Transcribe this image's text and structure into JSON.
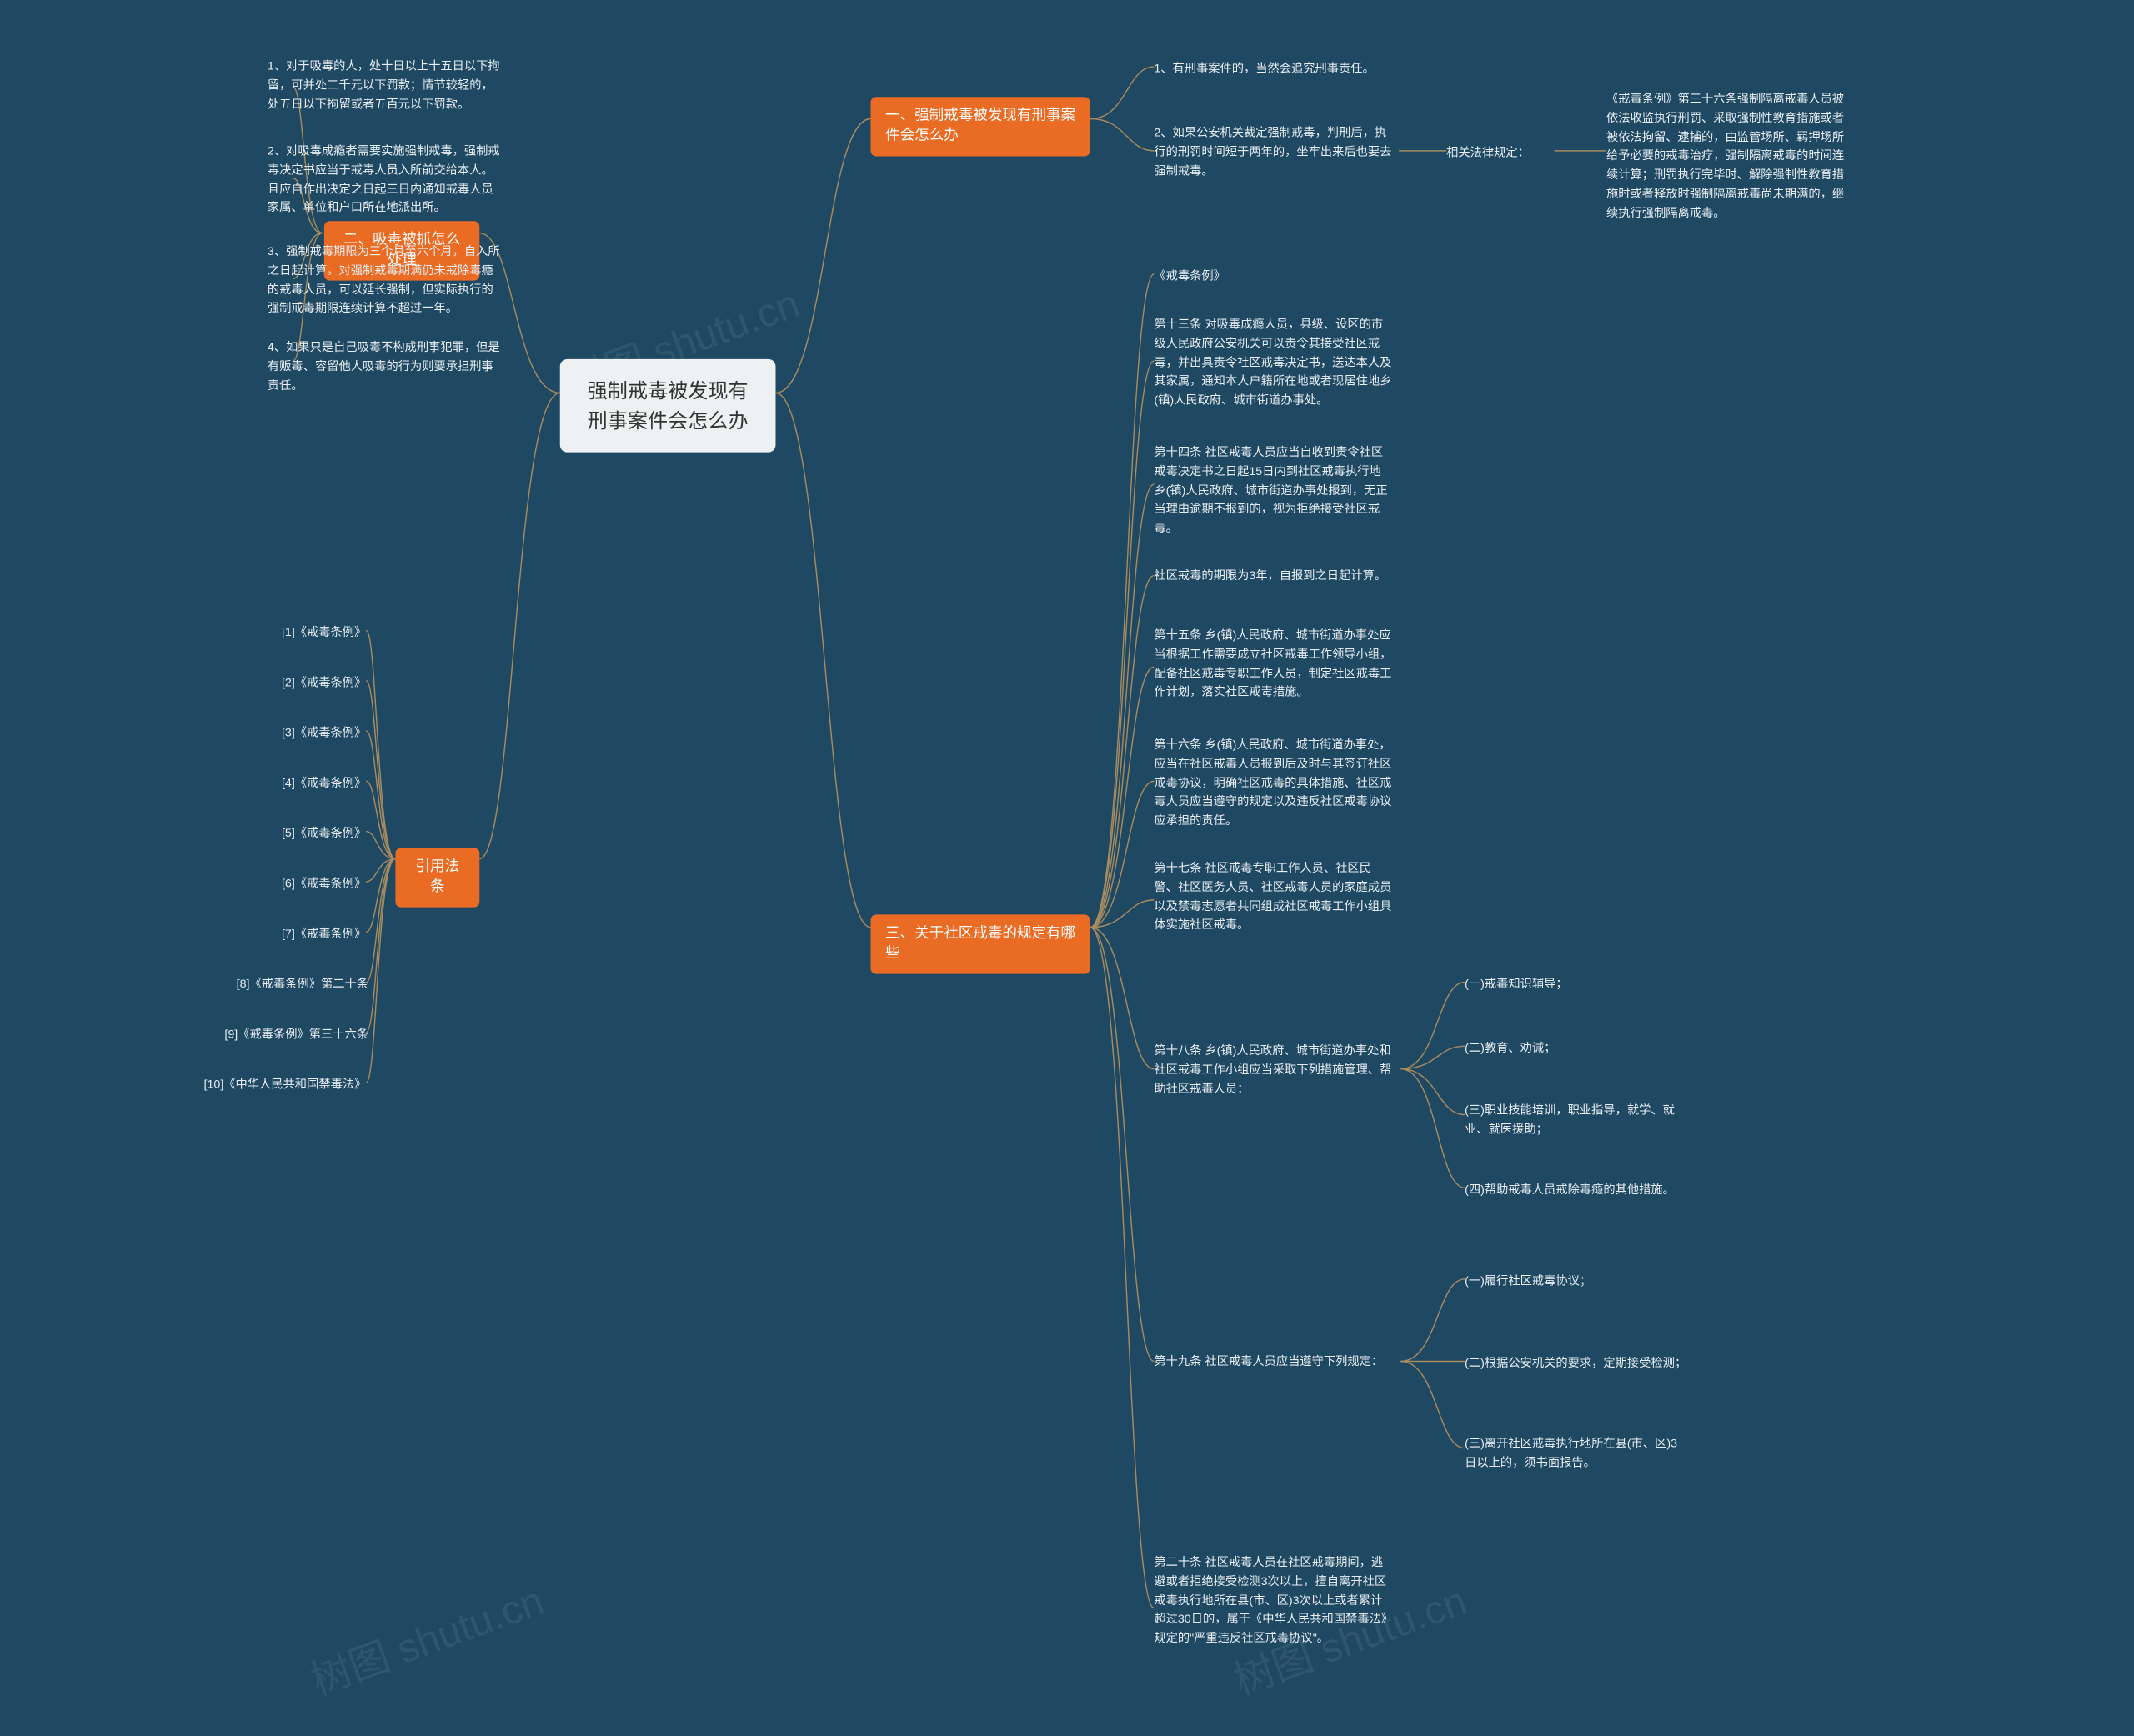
{
  "colors": {
    "background": "#1f4862",
    "root_bg": "#eef1f2",
    "root_text": "#333333",
    "branch_bg": "#e96b24",
    "branch_text": "#ffffff",
    "leaf_text": "#e8eef2",
    "connector": "#a88c5f",
    "watermark": "rgba(255,255,255,0.08)"
  },
  "fonts": {
    "root_fontsize": 22,
    "branch_fontsize": 16,
    "leaf_fontsize": 13
  },
  "watermark_text": "树图 shutu.cn",
  "root": {
    "label": "强制戒毒被发现有刑事案件会怎么办"
  },
  "branch1": {
    "label": "一、强制戒毒被发现有刑事案件会怎么办",
    "leaf1": "1、有刑事案件的，当然会追究刑事责任。",
    "leaf2": "2、如果公安机关裁定强制戒毒，判刑后，执行的刑罚时间短于两年的，坐牢出来后也要去强制戒毒。",
    "leaf2_sub_label": "相关法律规定：",
    "leaf2_sub_text": "《戒毒条例》第三十六条强制隔离戒毒人员被依法收监执行刑罚、采取强制性教育措施或者被依法拘留、逮捕的，由监管场所、羁押场所给予必要的戒毒治疗，强制隔离戒毒的时间连续计算；刑罚执行完毕时、解除强制性教育措施时或者释放时强制隔离戒毒尚未期满的，继续执行强制隔离戒毒。"
  },
  "branch2": {
    "label": "二、吸毒被抓怎么处理",
    "leaf1": "1、对于吸毒的人，处十日以上十五日以下拘留，可并处二千元以下罚款；情节较轻的，处五日以下拘留或者五百元以下罚款。",
    "leaf2": "2、对吸毒成瘾者需要实施强制戒毒，强制戒毒决定书应当于戒毒人员入所前交给本人。且应自作出决定之日起三日内通知戒毒人员家属、单位和户口所在地派出所。",
    "leaf3": "3、强制戒毒期限为三个月至六个月，自入所之日起计算。对强制戒毒期满仍未戒除毒瘾的戒毒人员，可以延长强制，但实际执行的强制戒毒期限连续计算不超过一年。",
    "leaf4": "4、如果只是自己吸毒不构成刑事犯罪，但是有贩毒、容留他人吸毒的行为则要承担刑事责任。"
  },
  "branch3": {
    "label": "三、关于社区戒毒的规定有哪些",
    "items": {
      "a": "《戒毒条例》",
      "b": "第十三条 对吸毒成瘾人员，县级、设区的市级人民政府公安机关可以责令其接受社区戒毒，并出具责令社区戒毒决定书，送达本人及其家属，通知本人户籍所在地或者现居住地乡(镇)人民政府、城市街道办事处。",
      "c": "第十四条 社区戒毒人员应当自收到责令社区戒毒决定书之日起15日内到社区戒毒执行地乡(镇)人民政府、城市街道办事处报到，无正当理由逾期不报到的，视为拒绝接受社区戒毒。",
      "d": "社区戒毒的期限为3年，自报到之日起计算。",
      "e": "第十五条 乡(镇)人民政府、城市街道办事处应当根据工作需要成立社区戒毒工作领导小组，配备社区戒毒专职工作人员，制定社区戒毒工作计划，落实社区戒毒措施。",
      "f": "第十六条 乡(镇)人民政府、城市街道办事处，应当在社区戒毒人员报到后及时与其签订社区戒毒协议，明确社区戒毒的具体措施、社区戒毒人员应当遵守的规定以及违反社区戒毒协议应承担的责任。",
      "g": "第十七条 社区戒毒专职工作人员、社区民警、社区医务人员、社区戒毒人员的家庭成员以及禁毒志愿者共同组成社区戒毒工作小组具体实施社区戒毒。",
      "h_label": "第十八条 乡(镇)人民政府、城市街道办事处和社区戒毒工作小组应当采取下列措施管理、帮助社区戒毒人员：",
      "h1": "(一)戒毒知识辅导；",
      "h2": "(二)教育、劝诫；",
      "h3": "(三)职业技能培训，职业指导，就学、就业、就医援助；",
      "h4": "(四)帮助戒毒人员戒除毒瘾的其他措施。",
      "i_label": "第十九条 社区戒毒人员应当遵守下列规定：",
      "i1": "(一)履行社区戒毒协议；",
      "i2": "(二)根据公安机关的要求，定期接受检测；",
      "i3": "(三)离开社区戒毒执行地所在县(市、区)3日以上的，须书面报告。",
      "j": "第二十条 社区戒毒人员在社区戒毒期间，逃避或者拒绝接受检测3次以上，擅自离开社区戒毒执行地所在县(市、区)3次以上或者累计超过30日的，属于《中华人民共和国禁毒法》规定的\"严重违反社区戒毒协议\"。"
    }
  },
  "branch4": {
    "label": "引用法条",
    "items": {
      "r1": "[1]《戒毒条例》",
      "r2": "[2]《戒毒条例》",
      "r3": "[3]《戒毒条例》",
      "r4": "[4]《戒毒条例》",
      "r5": "[5]《戒毒条例》",
      "r6": "[6]《戒毒条例》",
      "r7": "[7]《戒毒条例》",
      "r8": "[8]《戒毒条例》第二十条",
      "r9": "[9]《戒毒条例》第三十六条",
      "r10": "[10]《中华人民共和国禁毒法》"
    }
  }
}
